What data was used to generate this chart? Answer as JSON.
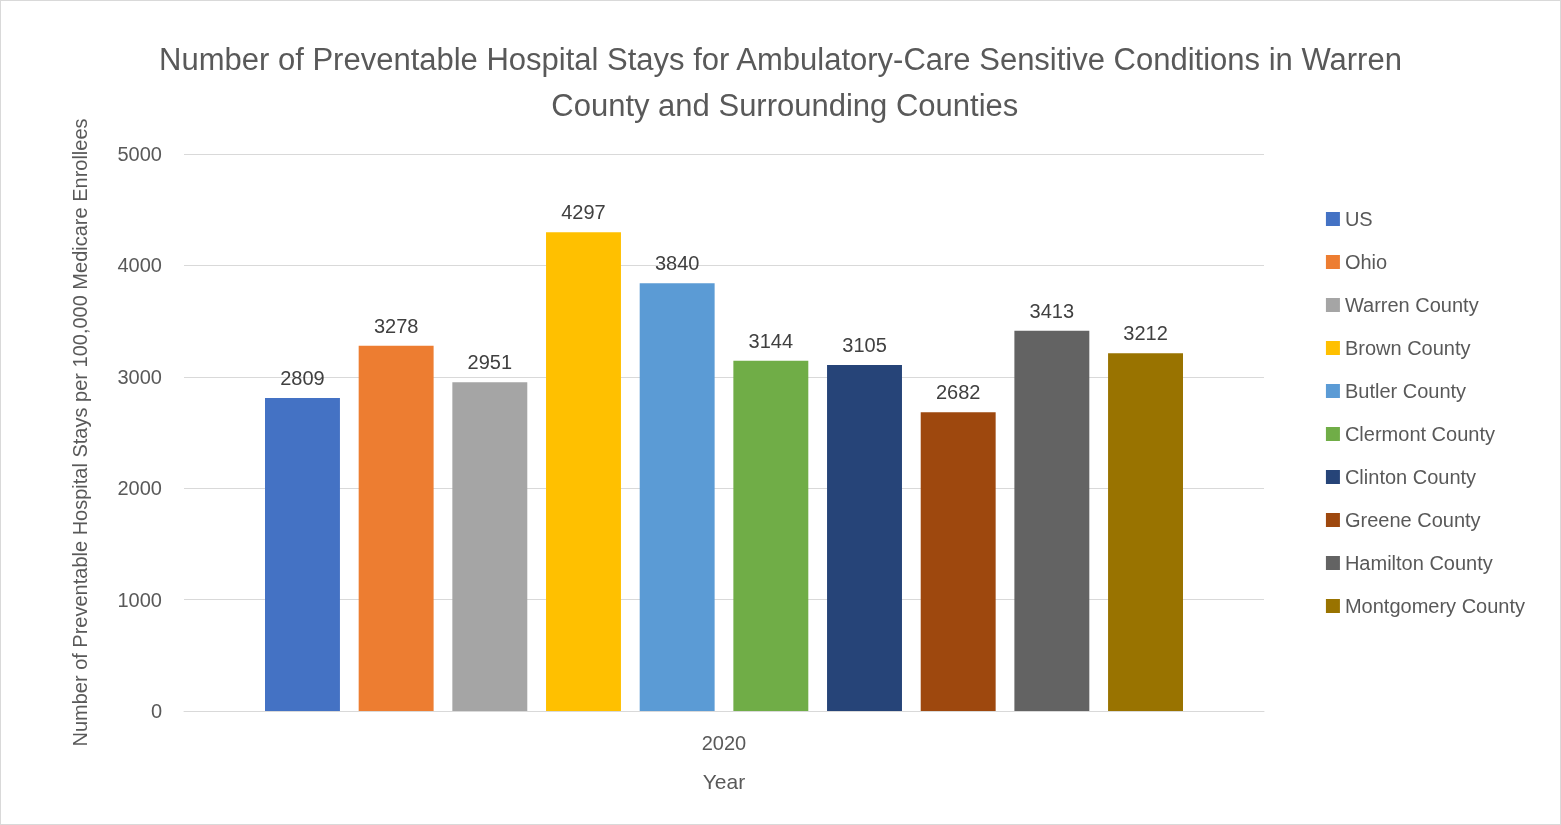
{
  "chart_data": {
    "type": "bar",
    "title": "Number of Preventable Hospital Stays for Ambulatory-Care Sensitive Conditions in Warren County and Surrounding Counties",
    "xlabel": "Year",
    "ylabel": "Number of Preventable Hospital Stays per 100,000 Medicare Enrollees",
    "categories": [
      "2020"
    ],
    "series": [
      {
        "name": "US",
        "color": "#4472c4",
        "values": [
          2809
        ]
      },
      {
        "name": "Ohio",
        "color": "#ed7d31",
        "values": [
          3278
        ]
      },
      {
        "name": "Warren County",
        "color": "#a5a5a5",
        "values": [
          2951
        ]
      },
      {
        "name": "Brown County",
        "color": "#ffc000",
        "values": [
          4297
        ]
      },
      {
        "name": "Butler County",
        "color": "#5b9bd5",
        "values": [
          3840
        ]
      },
      {
        "name": "Clermont County",
        "color": "#70ad47",
        "values": [
          3144
        ]
      },
      {
        "name": "Clinton County",
        "color": "#264478",
        "values": [
          3105
        ]
      },
      {
        "name": "Greene County",
        "color": "#9e480e",
        "values": [
          2682
        ]
      },
      {
        "name": "Hamilton County",
        "color": "#636363",
        "values": [
          3413
        ]
      },
      {
        "name": "Montgomery County",
        "color": "#997300",
        "values": [
          3212
        ]
      }
    ],
    "ylim": [
      0,
      5000
    ],
    "yticks": [
      0,
      1000,
      2000,
      3000,
      4000,
      5000
    ],
    "grid": "y",
    "legend": "right",
    "data_labels": true
  }
}
